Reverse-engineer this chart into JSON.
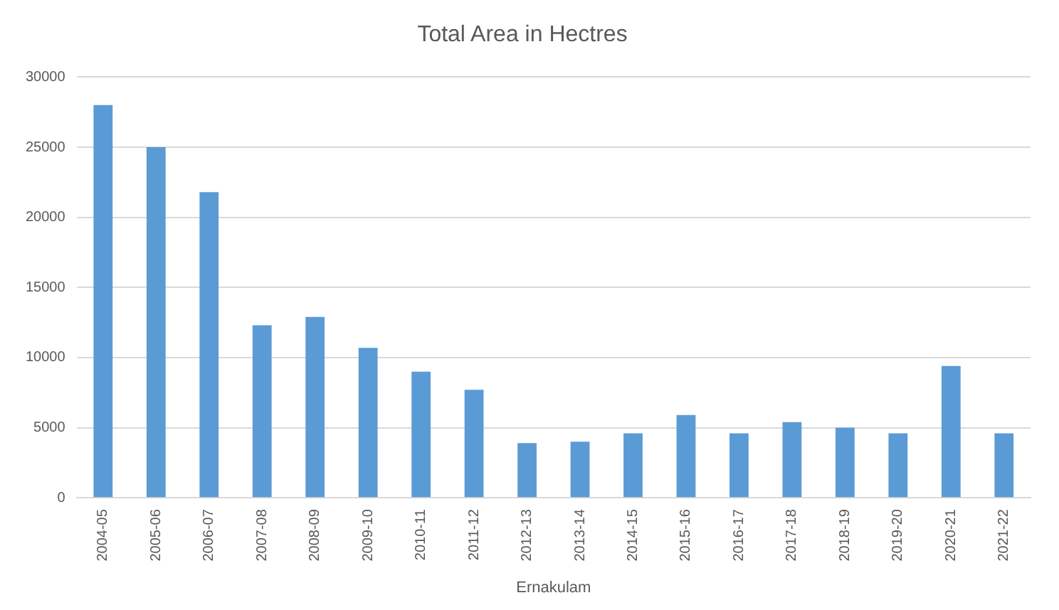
{
  "chart_data": {
    "type": "bar",
    "title": "Total Area in Hectres",
    "xlabel": "Ernakulam",
    "categories": [
      "2004-05",
      "2005-06",
      "2006-07",
      "2007-08",
      "2008-09",
      "2009-10",
      "2010-11",
      "2011-12",
      "2012-13",
      "2013-14",
      "2014-15",
      "2015-16",
      "2016-17",
      "2017-18",
      "2018-19",
      "2019-20",
      "2020-21",
      "2021-22"
    ],
    "values": [
      28000,
      25000,
      21800,
      12300,
      12900,
      10700,
      9000,
      7700,
      3900,
      4000,
      4600,
      5900,
      4600,
      5400,
      5000,
      4600,
      9400,
      4600
    ],
    "color": "#5b9bd5",
    "ylim": [
      0,
      30000
    ],
    "yticks": [
      0,
      5000,
      10000,
      15000,
      20000,
      25000,
      30000
    ],
    "grid": "y"
  }
}
